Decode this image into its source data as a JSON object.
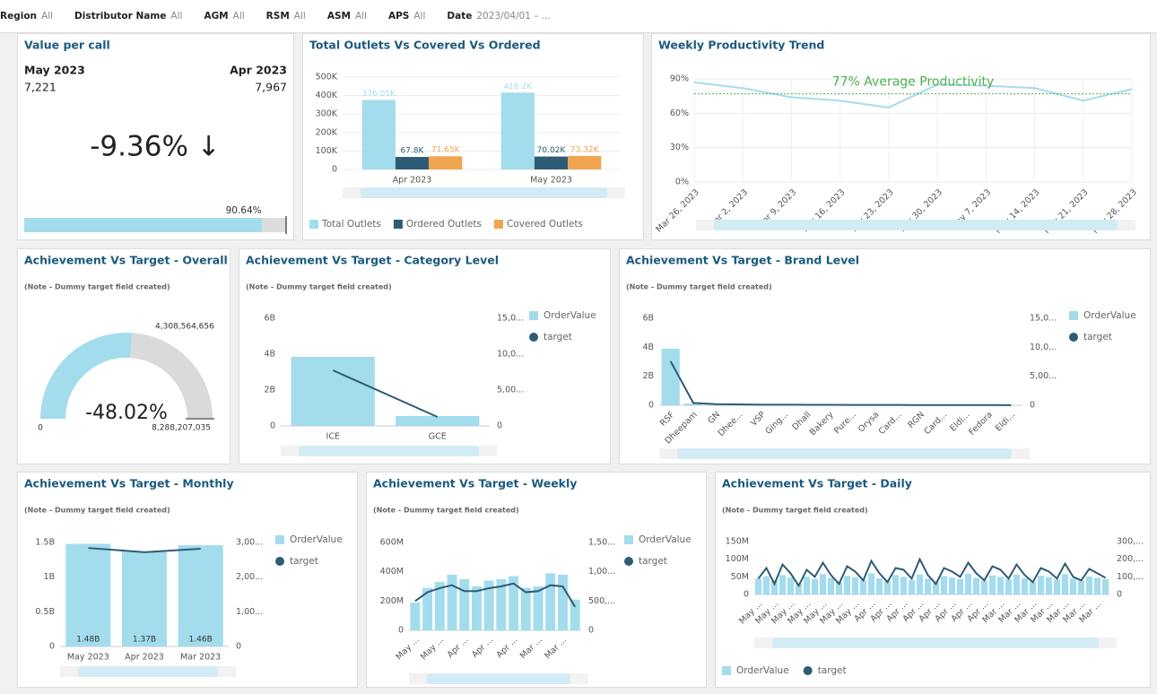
{
  "filters": [
    {
      "name": "Region",
      "value": "All"
    },
    {
      "name": "Distributor Name",
      "value": "All"
    },
    {
      "name": "AGM",
      "value": "All"
    },
    {
      "name": "RSM",
      "value": "All"
    },
    {
      "name": "ASM",
      "value": "All"
    },
    {
      "name": "APS",
      "value": "All"
    },
    {
      "name": "Date",
      "value": "2023/04/01 – ..."
    }
  ],
  "kpi": {
    "title": "Value per call",
    "current": {
      "label": "May 2023",
      "value": "7,221"
    },
    "previous": {
      "label": "Apr 2023",
      "value": "7,967"
    },
    "change": "-9.36% ↓",
    "progress": 90.64,
    "progress_label": "90.64%"
  },
  "chart_data": [
    {
      "type": "bar",
      "title": "Total Outlets Vs Covered Vs Ordered",
      "categories": [
        "Apr 2023",
        "May 2023"
      ],
      "series": [
        {
          "name": "Total Outlets",
          "color": "#a3dcec",
          "values": [
            376050,
            416200
          ],
          "value_labels": [
            "376.05K",
            "416.2K"
          ]
        },
        {
          "name": "Ordered Outlets",
          "color": "#2e5b75",
          "values": [
            67800,
            70020
          ],
          "value_labels": [
            "67.8K",
            "70.02K"
          ]
        },
        {
          "name": "Covered Outlets",
          "color": "#f0a550",
          "values": [
            71650,
            73320
          ],
          "value_labels": [
            "71.65K",
            "73.32K"
          ]
        }
      ],
      "ylim": [
        0,
        500000
      ],
      "yticks": [
        0,
        {
          "value": 100000,
          "label": "100K"
        },
        {
          "value": 200000,
          "label": "200K"
        },
        {
          "value": 300000,
          "label": "300K"
        },
        {
          "value": 400000,
          "label": "400K"
        },
        {
          "value": 500000,
          "label": "500K"
        }
      ],
      "grid": true,
      "legend": "bottom"
    },
    {
      "type": "line",
      "title": "Weekly Productivity Trend",
      "categories": [
        "Mar 26, 2023",
        "Apr 2, 2023",
        "Apr 9, 2023",
        "Apr 16, 2023",
        "Apr 23, 2023",
        "Apr 30, 2023",
        "May 7, 2023",
        "May 14, 2023",
        "May 21, 2023",
        "May 28, 2023"
      ],
      "values": [
        87,
        82,
        74,
        71,
        65,
        85,
        84,
        82,
        71,
        81
      ],
      "color": "#a6dcec",
      "reference": {
        "value": 77,
        "label": "77% Average Productivity",
        "color": "#4caf50"
      },
      "ylim": [
        0,
        90
      ],
      "yticks": [
        {
          "value": 0,
          "label": "0%"
        },
        {
          "value": 30,
          "label": "30%"
        },
        {
          "value": 60,
          "label": "60%"
        },
        {
          "value": 90,
          "label": "90%"
        }
      ],
      "grid": true
    },
    {
      "type": "gauge",
      "title": "Achievement Vs Target - Overall",
      "note": "(Note - Dummy target field created)",
      "value": 4308564656,
      "value_label": "4,308,564,656",
      "min": 0,
      "max": 8288207035,
      "max_label": "8,288,207,035",
      "change": "-48.02%",
      "color": "#a3dcec"
    },
    {
      "type": "combo",
      "title": "Achievement Vs Target - Category Level",
      "note": "(Note - Dummy target field created)",
      "categories": [
        "ICE",
        "GCE"
      ],
      "series": [
        {
          "name": "OrderValue",
          "type": "bar",
          "color": "#a3dcec",
          "values": [
            3850000000,
            550000000
          ]
        },
        {
          "name": "target",
          "type": "line",
          "axis": "y2",
          "color": "#2e5b75",
          "values": [
            7750000000,
            1250000000
          ]
        }
      ],
      "ylim": [
        0,
        6000000000
      ],
      "yticks": [
        0,
        {
          "value": 2000000000,
          "label": "2B"
        },
        {
          "value": 4000000000,
          "label": "4B"
        },
        {
          "value": 6000000000,
          "label": "6B"
        }
      ],
      "y2lim": [
        0,
        15000000000
      ],
      "y2ticks": [
        0,
        {
          "value": 5000000000,
          "label": "5,00..."
        },
        {
          "value": 10000000000,
          "label": "10,0..."
        },
        {
          "value": 15000000000,
          "label": "15,0..."
        }
      ],
      "legend": "right"
    },
    {
      "type": "combo",
      "title": "Achievement Vs Target - Brand Level",
      "note": "(Note - Dummy target field created)",
      "categories": [
        "RSF",
        "Dheepam",
        "GN",
        "Dhee...",
        "VSP",
        "Ging...",
        "Dhall",
        "Bakery",
        "Pure...",
        "Orysa",
        "Card...",
        "RGN",
        "Card...",
        "Eldi...",
        "Fedora",
        "Eldi..."
      ],
      "series": [
        {
          "name": "OrderValue",
          "type": "bar",
          "color": "#a3dcec",
          "values": [
            3900000000.0,
            120000000.0,
            60000000.0,
            50000000.0,
            40000000.0,
            40000000.0,
            30000000.0,
            30000000.0,
            25000000.0,
            20000000.0,
            20000000.0,
            15000000.0,
            15000000.0,
            10000000.0,
            10000000.0,
            5000000.0
          ]
        },
        {
          "name": "target",
          "type": "line",
          "axis": "y2",
          "color": "#2e5b75",
          "values": [
            7600000000.0,
            400000000.0,
            200000000.0,
            150000000.0,
            100000000.0,
            100000000.0,
            80000000.0,
            70000000.0,
            60000000.0,
            50000000.0,
            50000000.0,
            40000000.0,
            40000000.0,
            30000000.0,
            30000000.0,
            20000000.0
          ]
        }
      ],
      "ylim": [
        0,
        6000000000
      ],
      "yticks": [
        0,
        {
          "value": 2000000000,
          "label": "2B"
        },
        {
          "value": 4000000000,
          "label": "4B"
        },
        {
          "value": 6000000000,
          "label": "6B"
        }
      ],
      "y2lim": [
        0,
        15000000000
      ],
      "y2ticks": [
        0,
        {
          "value": 5000000000,
          "label": "5,00..."
        },
        {
          "value": 10000000000,
          "label": "10,0..."
        },
        {
          "value": 15000000000,
          "label": "15,0..."
        }
      ],
      "legend": "right"
    },
    {
      "type": "combo",
      "title": "Achievement Vs Target - Monthly",
      "note": "(Note - Dummy target field created)",
      "categories": [
        "May 2023",
        "Apr 2023",
        "Mar 2023"
      ],
      "series": [
        {
          "name": "OrderValue",
          "type": "bar",
          "color": "#a3dcec",
          "values": [
            1480000000,
            1370000000,
            1460000000
          ],
          "value_labels": [
            "1.48B",
            "1.37B",
            "1.46B"
          ]
        },
        {
          "name": "target",
          "type": "line",
          "axis": "y2",
          "color": "#2e5b75",
          "values": [
            2840000000,
            2720000000,
            2820000000
          ]
        }
      ],
      "ylim": [
        0,
        1500000000
      ],
      "yticks": [
        0,
        {
          "value": 500000000,
          "label": "0.5B"
        },
        {
          "value": 1000000000,
          "label": "1B"
        },
        {
          "value": 1500000000,
          "label": "1.5B"
        }
      ],
      "y2lim": [
        0,
        3000000000
      ],
      "y2ticks": [
        0,
        {
          "value": 1000000000,
          "label": "1,00..."
        },
        {
          "value": 2000000000,
          "label": "2,00..."
        },
        {
          "value": 3000000000,
          "label": "3,00..."
        }
      ],
      "legend": "right"
    },
    {
      "type": "combo",
      "title": "Achievement Vs Target - Weekly",
      "note": "(Note - Dummy target field created)",
      "categories": [
        "May ...",
        null,
        "May ...",
        null,
        "Apr ...",
        null,
        "Apr ...",
        null,
        "Apr ...",
        null,
        "Mar ...",
        null,
        "Mar ...",
        null
      ],
      "series": [
        {
          "name": "OrderValue",
          "type": "bar",
          "color": "#a3dcec",
          "values": [
            190000000.0,
            290000000.0,
            330000000.0,
            380000000.0,
            350000000.0,
            300000000.0,
            340000000.0,
            350000000.0,
            370000000.0,
            290000000.0,
            300000000.0,
            390000000.0,
            380000000.0,
            210000000.0
          ]
        },
        {
          "name": "target",
          "type": "line",
          "axis": "y2",
          "color": "#2e5b75",
          "values": [
            500000000.0,
            650000000.0,
            720000000.0,
            770000000.0,
            670000000.0,
            670000000.0,
            720000000.0,
            750000000.0,
            800000000.0,
            650000000.0,
            670000000.0,
            770000000.0,
            750000000.0,
            400000000.0
          ]
        }
      ],
      "ylim": [
        0,
        600000000
      ],
      "yticks": [
        0,
        {
          "value": 200000000,
          "label": "200M"
        },
        {
          "value": 400000000,
          "label": "400M"
        },
        {
          "value": 600000000,
          "label": "600M"
        }
      ],
      "y2lim": [
        0,
        1500000000
      ],
      "y2ticks": [
        0,
        {
          "value": 500000000,
          "label": "500,..."
        },
        {
          "value": 1000000000,
          "label": "1,00..."
        },
        {
          "value": 1500000000,
          "label": "1,50..."
        }
      ],
      "legend": "right"
    },
    {
      "type": "combo",
      "title": "Achievement Vs Target - Daily",
      "note": "(Note - Dummy target field created)",
      "categories": [
        "May ...",
        null,
        "May ...",
        null,
        "May ...",
        null,
        "May ...",
        null,
        "May ...",
        null,
        "May ...",
        null,
        "May ...",
        null,
        "Apr ...",
        null,
        "Apr ...",
        null,
        "Apr ...",
        null,
        "Apr ...",
        null,
        "Apr ...",
        null,
        "Apr ...",
        null,
        "Apr ...",
        null,
        "Apr ...",
        null,
        "Mar ...",
        null,
        "Mar ...",
        null,
        "Mar ...",
        null,
        "Mar ...",
        null,
        "Mar ...",
        null,
        "Mar ...",
        null,
        "Mar ...",
        null
      ],
      "series": [
        {
          "name": "OrderValue",
          "type": "bar",
          "color": "#a3dcec",
          "values": [
            45000000.0,
            52000000.0,
            40000000.0,
            55000000.0,
            48000000.0,
            30000000.0,
            50000000.0,
            44000000.0,
            58000000.0,
            47000000.0,
            35000000.0,
            53000000.0,
            49000000.0,
            42000000.0,
            60000000.0,
            46000000.0,
            38000000.0,
            55000000.0,
            50000000.0,
            41000000.0,
            57000000.0,
            45000000.0,
            36000000.0,
            52000000.0,
            48000000.0,
            44000000.0,
            59000000.0,
            47000000.0,
            39000000.0,
            54000000.0,
            50000000.0,
            43000000.0,
            56000000.0,
            46000000.0,
            37000000.0,
            53000000.0,
            49000000.0,
            42000000.0,
            58000000.0,
            45000000.0,
            40000000.0,
            51000000.0,
            47000000.0,
            44000000.0
          ]
        },
        {
          "name": "target",
          "type": "line",
          "axis": "y2",
          "color": "#2e5b75",
          "values": [
            90000000.0,
            150000000.0,
            60000000.0,
            170000000.0,
            120000000.0,
            50000000.0,
            140000000.0,
            100000000.0,
            180000000.0,
            110000000.0,
            60000000.0,
            160000000.0,
            130000000.0,
            80000000.0,
            190000000.0,
            120000000.0,
            70000000.0,
            150000000.0,
            140000000.0,
            90000000.0,
            200000000.0,
            110000000.0,
            60000000.0,
            150000000.0,
            130000000.0,
            100000000.0,
            180000000.0,
            120000000.0,
            80000000.0,
            160000000.0,
            140000000.0,
            90000000.0,
            170000000.0,
            110000000.0,
            70000000.0,
            150000000.0,
            130000000.0,
            90000000.0,
            175000000.0,
            100000000.0,
            80000000.0,
            145000000.0,
            120000000.0,
            95000000.0
          ]
        }
      ],
      "ylim": [
        0,
        150000000
      ],
      "yticks": [
        0,
        {
          "value": 50000000,
          "label": "50M"
        },
        {
          "value": 100000000,
          "label": "100M"
        },
        {
          "value": 150000000,
          "label": "150M"
        }
      ],
      "y2lim": [
        0,
        300000000
      ],
      "y2ticks": [
        0,
        {
          "value": 100000000,
          "label": "100,..."
        },
        {
          "value": 200000000,
          "label": "200,..."
        },
        {
          "value": 300000000,
          "label": "300,..."
        }
      ],
      "legend": "bottom"
    }
  ]
}
